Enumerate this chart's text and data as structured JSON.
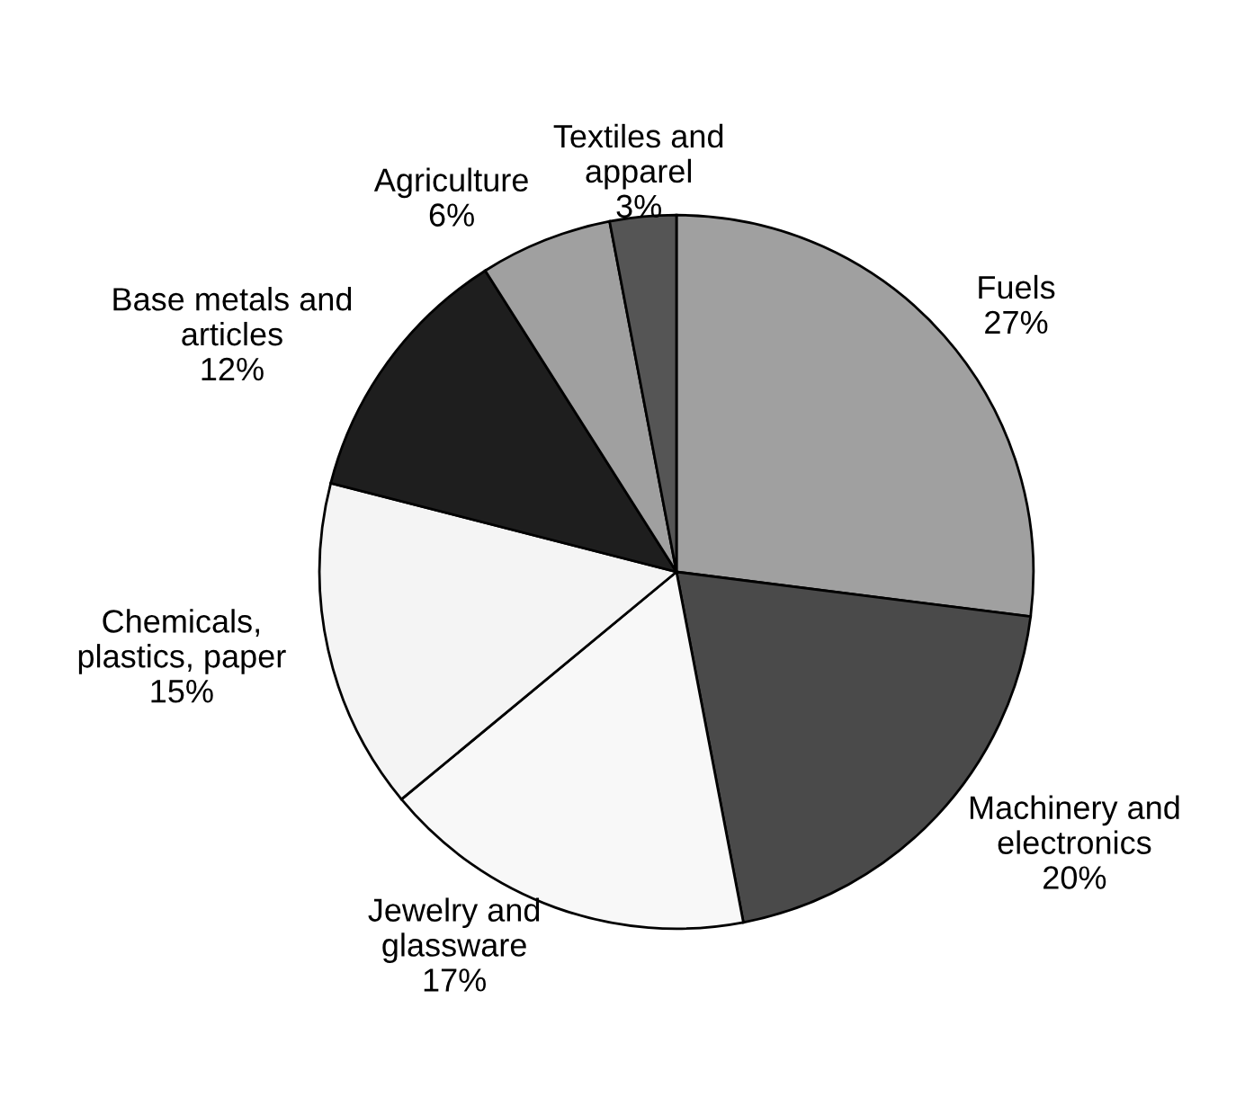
{
  "chart_data": {
    "type": "pie",
    "categories": [
      "Fuels",
      "Machinery and\nelectronics",
      "Jewelry and\nglassware",
      "Chemicals,\nplastics, paper",
      "Base metals and\narticles",
      "Agriculture",
      "Textiles and\napparel"
    ],
    "values": [
      27,
      20,
      17,
      15,
      12,
      6,
      3
    ],
    "value_labels": [
      "27%",
      "20%",
      "17%",
      "15%",
      "12%",
      "6%",
      "3%"
    ],
    "colors": [
      "#a0a0a0",
      "#4a4a4a",
      "#f8f8f8",
      "#f4f4f4",
      "#1e1e1e",
      "#a0a0a0",
      "#555555"
    ]
  }
}
